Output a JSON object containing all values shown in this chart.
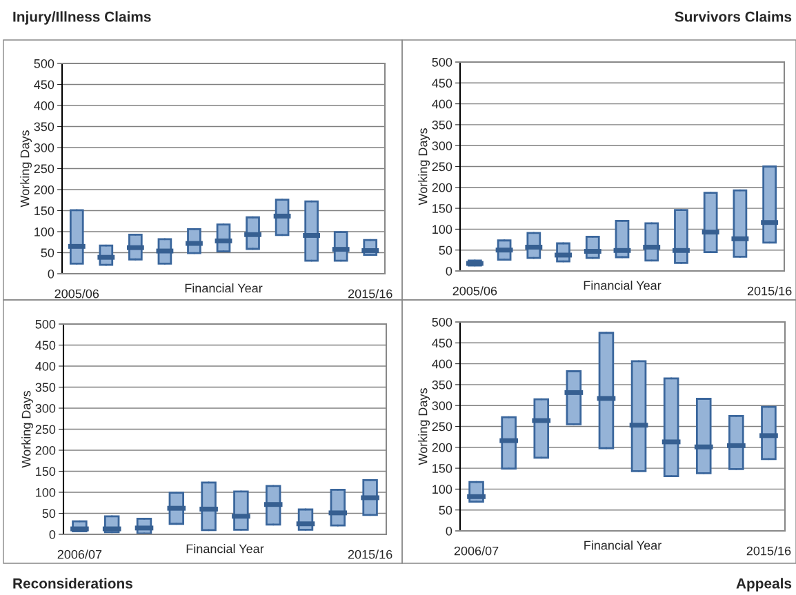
{
  "chart_data": [
    {
      "type": "box",
      "title": "Injury/Illness Claims",
      "xlabel": "Financial Year",
      "ylabel": "Working Days",
      "categories": [
        "2005/06",
        null,
        null,
        null,
        null,
        null,
        null,
        null,
        null,
        null,
        "2015/16"
      ],
      "color": "#95b3d7",
      "ylim": [
        0,
        500
      ],
      "yticks": [
        0,
        50,
        100,
        150,
        200,
        250,
        300,
        350,
        400,
        450,
        500
      ],
      "grid": "y",
      "boxes": [
        {
          "low": 24,
          "q1": 24,
          "median": 65,
          "q3": 151,
          "high": 151
        },
        {
          "low": 21,
          "q1": 21,
          "median": 39,
          "q3": 67,
          "high": 67
        },
        {
          "low": 34,
          "q1": 34,
          "median": 62,
          "q3": 93,
          "high": 93
        },
        {
          "low": 24,
          "q1": 24,
          "median": 54,
          "q3": 82,
          "high": 82
        },
        {
          "low": 49,
          "q1": 49,
          "median": 72,
          "q3": 106,
          "high": 106
        },
        {
          "low": 53,
          "q1": 53,
          "median": 78,
          "q3": 117,
          "high": 117
        },
        {
          "low": 59,
          "q1": 59,
          "median": 93,
          "q3": 134,
          "high": 134
        },
        {
          "low": 92,
          "q1": 92,
          "median": 137,
          "q3": 176,
          "high": 176
        },
        {
          "low": 31,
          "q1": 31,
          "median": 91,
          "q3": 172,
          "high": 172
        },
        {
          "low": 31,
          "q1": 31,
          "median": 58,
          "q3": 99,
          "high": 99
        },
        {
          "low": 45,
          "q1": 45,
          "median": 55,
          "q3": 80,
          "high": 80
        }
      ]
    },
    {
      "type": "box",
      "title": "Survivors Claims",
      "xlabel": "Financial Year",
      "ylabel": "Working Days",
      "categories": [
        "2005/06",
        null,
        null,
        null,
        null,
        null,
        null,
        null,
        null,
        null,
        "2015/16"
      ],
      "color": "#95b3d7",
      "ylim": [
        0,
        500
      ],
      "yticks": [
        0,
        50,
        100,
        150,
        200,
        250,
        300,
        350,
        400,
        450,
        500
      ],
      "grid": "y",
      "boxes": [
        {
          "low": 13,
          "q1": 13,
          "median": 18,
          "q3": 25,
          "high": 25
        },
        {
          "low": 27,
          "q1": 27,
          "median": 50,
          "q3": 73,
          "high": 73
        },
        {
          "low": 31,
          "q1": 31,
          "median": 57,
          "q3": 91,
          "high": 91
        },
        {
          "low": 23,
          "q1": 23,
          "median": 38,
          "q3": 66,
          "high": 66
        },
        {
          "low": 31,
          "q1": 31,
          "median": 47,
          "q3": 82,
          "high": 82
        },
        {
          "low": 33,
          "q1": 33,
          "median": 49,
          "q3": 120,
          "high": 120
        },
        {
          "low": 25,
          "q1": 25,
          "median": 57,
          "q3": 114,
          "high": 114
        },
        {
          "low": 19,
          "q1": 19,
          "median": 49,
          "q3": 146,
          "high": 146
        },
        {
          "low": 45,
          "q1": 45,
          "median": 93,
          "q3": 187,
          "high": 187
        },
        {
          "low": 34,
          "q1": 34,
          "median": 77,
          "q3": 193,
          "high": 193
        },
        {
          "low": 68,
          "q1": 68,
          "median": 116,
          "q3": 250,
          "high": 250
        }
      ]
    },
    {
      "type": "box",
      "title": "Reconsiderations",
      "xlabel": "Financial Year",
      "ylabel": "Working Days",
      "categories": [
        "2006/07",
        null,
        null,
        null,
        null,
        null,
        null,
        null,
        null,
        "2015/16"
      ],
      "color": "#95b3d7",
      "ylim": [
        0,
        500
      ],
      "yticks": [
        0,
        50,
        100,
        150,
        200,
        250,
        300,
        350,
        400,
        450,
        500
      ],
      "grid": "y",
      "boxes": [
        {
          "low": 7,
          "q1": 7,
          "median": 13,
          "q3": 31,
          "high": 31
        },
        {
          "low": 5,
          "q1": 5,
          "median": 13,
          "q3": 43,
          "high": 43
        },
        {
          "low": 2,
          "q1": 2,
          "median": 15,
          "q3": 37,
          "high": 37
        },
        {
          "low": 25,
          "q1": 25,
          "median": 62,
          "q3": 99,
          "high": 99
        },
        {
          "low": 10,
          "q1": 10,
          "median": 60,
          "q3": 123,
          "high": 123
        },
        {
          "low": 11,
          "q1": 11,
          "median": 43,
          "q3": 102,
          "high": 102
        },
        {
          "low": 23,
          "q1": 23,
          "median": 71,
          "q3": 115,
          "high": 115
        },
        {
          "low": 11,
          "q1": 11,
          "median": 25,
          "q3": 59,
          "high": 59
        },
        {
          "low": 21,
          "q1": 21,
          "median": 51,
          "q3": 106,
          "high": 106
        },
        {
          "low": 46,
          "q1": 46,
          "median": 87,
          "q3": 129,
          "high": 129
        }
      ]
    },
    {
      "type": "box",
      "title": "Appeals",
      "xlabel": "Financial Year",
      "ylabel": "Working Days",
      "categories": [
        "2006/07",
        null,
        null,
        null,
        null,
        null,
        null,
        null,
        null,
        "2015/16"
      ],
      "color": "#95b3d7",
      "ylim": [
        0,
        500
      ],
      "yticks": [
        0,
        50,
        100,
        150,
        200,
        250,
        300,
        350,
        400,
        450,
        500
      ],
      "grid": "y",
      "boxes": [
        {
          "low": 70,
          "q1": 70,
          "median": 82,
          "q3": 117,
          "high": 117
        },
        {
          "low": 149,
          "q1": 149,
          "median": 216,
          "q3": 272,
          "high": 272
        },
        {
          "low": 175,
          "q1": 175,
          "median": 264,
          "q3": 315,
          "high": 315
        },
        {
          "low": 255,
          "q1": 255,
          "median": 331,
          "q3": 382,
          "high": 382
        },
        {
          "low": 198,
          "q1": 198,
          "median": 317,
          "q3": 474,
          "high": 474
        },
        {
          "low": 143,
          "q1": 143,
          "median": 253,
          "q3": 406,
          "high": 406
        },
        {
          "low": 131,
          "q1": 131,
          "median": 213,
          "q3": 365,
          "high": 365
        },
        {
          "low": 138,
          "q1": 138,
          "median": 201,
          "q3": 316,
          "high": 316
        },
        {
          "low": 148,
          "q1": 148,
          "median": 204,
          "q3": 275,
          "high": 275
        },
        {
          "low": 172,
          "q1": 172,
          "median": 228,
          "q3": 297,
          "high": 297
        }
      ]
    }
  ]
}
